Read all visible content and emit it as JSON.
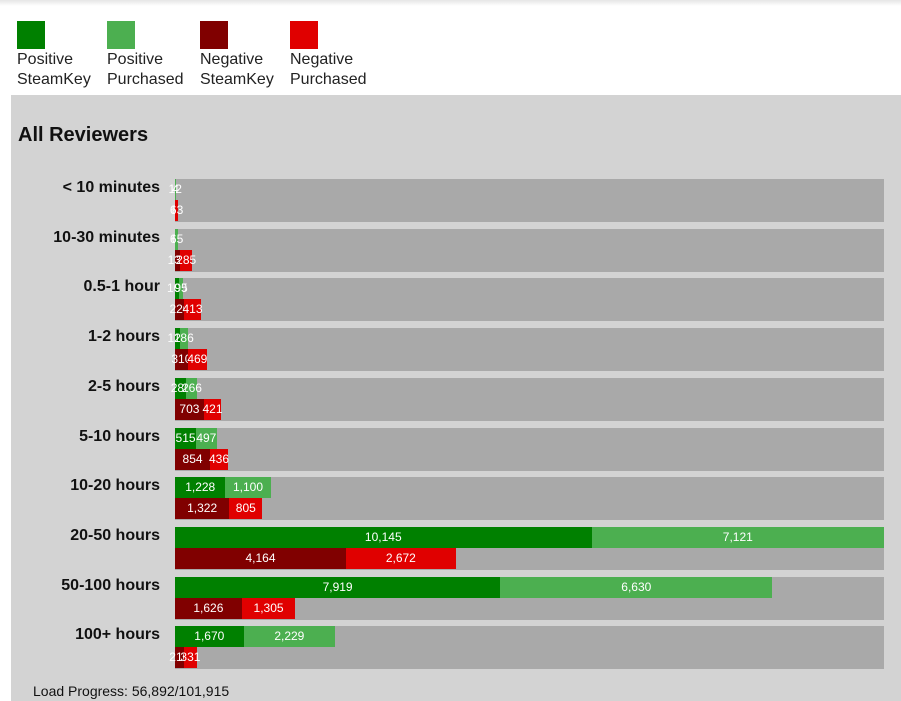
{
  "chart_data": {
    "type": "bar",
    "title": "All Reviewers",
    "categories": [
      "< 10 minutes",
      "10-30 minutes",
      "0.5-1 hour",
      "1-2 hours",
      "2-5 hours",
      "5-10 hours",
      "10-20 hours",
      "20-50 hours",
      "50-100 hours",
      "100+ hours"
    ],
    "series": [
      {
        "name": "Positive SteamKey",
        "color": "#008000",
        "values": [
          12,
          6,
          100,
          120,
          280,
          515,
          1228,
          10145,
          7919,
          1670
        ],
        "value_labels": [
          "12",
          "6",
          "100",
          "120",
          "280",
          "515",
          "1,228",
          "10,145",
          "7,919",
          "1,670"
        ]
      },
      {
        "name": "Positive Purchased",
        "color": "#4caf50",
        "values": [
          4,
          65,
          95,
          186,
          266,
          497,
          1100,
          7121,
          6630,
          2229
        ],
        "value_labels": [
          "4",
          "65",
          "95",
          "186",
          "266",
          "497",
          "1,100",
          "7,121",
          "6,630",
          "2,229"
        ]
      },
      {
        "name": "Negative SteamKey",
        "color": "#800000",
        "values": [
          8,
          130,
          220,
          310,
          703,
          854,
          1322,
          4164,
          1626,
          210
        ],
        "value_labels": [
          "8",
          "130",
          "220",
          "310",
          "703",
          "854",
          "1,322",
          "4,164",
          "1,626",
          "210"
        ]
      },
      {
        "name": "Negative Purchased",
        "color": "#e00000",
        "values": [
          63,
          285,
          413,
          469,
          421,
          436,
          805,
          2672,
          1305,
          331
        ],
        "value_labels": [
          "63",
          "285",
          "413",
          "469",
          "421",
          "436",
          "805",
          "2,672",
          "1,305",
          "331"
        ]
      }
    ],
    "footer": "Load Progress: 56,892/101,915"
  }
}
